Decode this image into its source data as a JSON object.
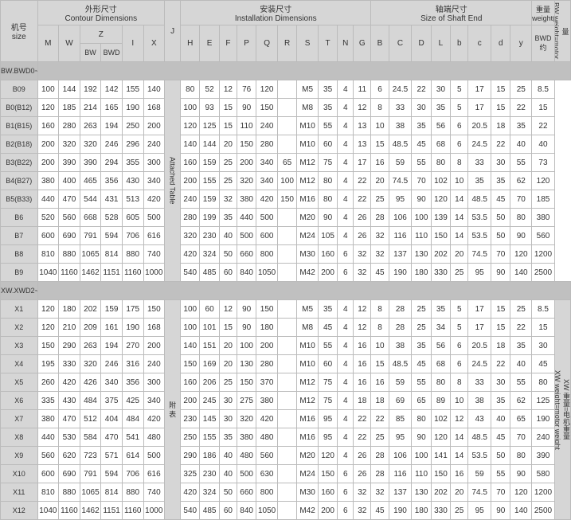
{
  "headers": {
    "size": "机号\nsize",
    "contour": "外形尺寸\nContour Dimensions",
    "install": "安装尺寸\nInstallation Dimensions",
    "shaft": "轴端尺寸\nSize of Shaft End",
    "weight": "重量\nweight(kg)",
    "M": "M",
    "W": "W",
    "Z": "Z",
    "BW": "BW",
    "BWD": "BWD",
    "I": "I",
    "X": "X",
    "J": "J",
    "H": "H",
    "E": "E",
    "F": "F",
    "P": "P",
    "Q": "Q",
    "R": "R",
    "S": "S",
    "T": "T",
    "N": "N",
    "G": "G",
    "B": "B",
    "C": "C",
    "D": "D",
    "L": "L",
    "b": "b",
    "c": "c",
    "d": "d",
    "y": "y",
    "BWDc": "BWD\n约",
    "attached": "Attached Table",
    "fu": "附\n表",
    "sec1": "BW.BWD0~9",
    "sec2": "XW.XWD2~12",
    "side1": "BW 重量=电机重量\nBW weight=motor weight",
    "side2": "XW 重量=电机重量\nXW weight=motor weight"
  },
  "rows1": [
    {
      "n": "B09",
      "c": [
        "100",
        "144",
        "192",
        "142",
        "155",
        "140"
      ],
      "i": [
        "80",
        "52",
        "12",
        "76",
        "120",
        "",
        "M5",
        "35",
        "4",
        "11",
        "6",
        "24.5",
        "22",
        "30",
        "5",
        "17",
        "15",
        "25",
        "8.5"
      ]
    },
    {
      "n": "B0(B12)",
      "c": [
        "120",
        "185",
        "214",
        "165",
        "190",
        "168"
      ],
      "i": [
        "100",
        "93",
        "15",
        "90",
        "150",
        "",
        "M8",
        "35",
        "4",
        "12",
        "8",
        "33",
        "30",
        "35",
        "5",
        "17",
        "15",
        "22",
        "15"
      ]
    },
    {
      "n": "B1(B15)",
      "c": [
        "160",
        "280",
        "263",
        "194",
        "250",
        "200"
      ],
      "i": [
        "120",
        "125",
        "15",
        "110",
        "240",
        "",
        "M10",
        "55",
        "4",
        "13",
        "10",
        "38",
        "35",
        "56",
        "6",
        "20.5",
        "18",
        "35",
        "22"
      ]
    },
    {
      "n": "B2(B18)",
      "c": [
        "200",
        "320",
        "320",
        "246",
        "296",
        "240"
      ],
      "i": [
        "140",
        "144",
        "20",
        "150",
        "280",
        "",
        "M10",
        "60",
        "4",
        "13",
        "15",
        "48.5",
        "45",
        "68",
        "6",
        "24.5",
        "22",
        "40",
        "40"
      ]
    },
    {
      "n": "B3(B22)",
      "c": [
        "200",
        "390",
        "390",
        "294",
        "355",
        "300"
      ],
      "i": [
        "160",
        "159",
        "25",
        "200",
        "340",
        "65",
        "M12",
        "75",
        "4",
        "17",
        "16",
        "59",
        "55",
        "80",
        "8",
        "33",
        "30",
        "55",
        "73"
      ]
    },
    {
      "n": "B4(B27)",
      "c": [
        "380",
        "400",
        "465",
        "356",
        "430",
        "340"
      ],
      "i": [
        "200",
        "155",
        "25",
        "320",
        "340",
        "100",
        "M12",
        "80",
        "4",
        "22",
        "20",
        "74.5",
        "70",
        "102",
        "10",
        "35",
        "35",
        "62",
        "120"
      ]
    },
    {
      "n": "B5(B33)",
      "c": [
        "440",
        "470",
        "544",
        "431",
        "513",
        "420"
      ],
      "i": [
        "240",
        "159",
        "32",
        "380",
        "420",
        "150",
        "M16",
        "80",
        "4",
        "22",
        "25",
        "95",
        "90",
        "120",
        "14",
        "48.5",
        "45",
        "70",
        "185"
      ]
    },
    {
      "n": "B6",
      "c": [
        "520",
        "560",
        "668",
        "528",
        "605",
        "500"
      ],
      "i": [
        "280",
        "199",
        "35",
        "440",
        "500",
        "",
        "M20",
        "90",
        "4",
        "26",
        "28",
        "106",
        "100",
        "139",
        "14",
        "53.5",
        "50",
        "80",
        "380"
      ]
    },
    {
      "n": "B7",
      "c": [
        "600",
        "690",
        "791",
        "594",
        "706",
        "616"
      ],
      "i": [
        "320",
        "230",
        "40",
        "500",
        "600",
        "",
        "M24",
        "105",
        "4",
        "26",
        "32",
        "116",
        "110",
        "150",
        "14",
        "53.5",
        "50",
        "90",
        "560"
      ]
    },
    {
      "n": "B8",
      "c": [
        "810",
        "880",
        "1065",
        "814",
        "880",
        "740"
      ],
      "i": [
        "420",
        "324",
        "50",
        "660",
        "800",
        "",
        "M30",
        "160",
        "6",
        "32",
        "32",
        "137",
        "130",
        "202",
        "20",
        "74.5",
        "70",
        "120",
        "1200"
      ]
    },
    {
      "n": "B9",
      "c": [
        "1040",
        "1160",
        "1462",
        "1151",
        "1160",
        "1000"
      ],
      "i": [
        "540",
        "485",
        "60",
        "840",
        "1050",
        "",
        "M42",
        "200",
        "6",
        "32",
        "45",
        "190",
        "180",
        "330",
        "25",
        "95",
        "90",
        "140",
        "2500"
      ]
    }
  ],
  "rows2": [
    {
      "n": "X1",
      "c": [
        "120",
        "180",
        "202",
        "159",
        "175",
        "150"
      ],
      "i": [
        "100",
        "60",
        "12",
        "90",
        "150",
        "",
        "M5",
        "35",
        "4",
        "12",
        "8",
        "28",
        "25",
        "35",
        "5",
        "17",
        "15",
        "25",
        "8.5"
      ]
    },
    {
      "n": "X2",
      "c": [
        "120",
        "210",
        "209",
        "161",
        "190",
        "168"
      ],
      "i": [
        "100",
        "101",
        "15",
        "90",
        "180",
        "",
        "M8",
        "45",
        "4",
        "12",
        "8",
        "28",
        "25",
        "34",
        "5",
        "17",
        "15",
        "22",
        "15"
      ]
    },
    {
      "n": "X3",
      "c": [
        "150",
        "290",
        "263",
        "194",
        "270",
        "200"
      ],
      "i": [
        "140",
        "151",
        "20",
        "100",
        "200",
        "",
        "M10",
        "55",
        "4",
        "16",
        "10",
        "38",
        "35",
        "56",
        "6",
        "20.5",
        "18",
        "35",
        "30"
      ]
    },
    {
      "n": "X4",
      "c": [
        "195",
        "330",
        "320",
        "246",
        "316",
        "240"
      ],
      "i": [
        "150",
        "169",
        "20",
        "130",
        "280",
        "",
        "M10",
        "60",
        "4",
        "16",
        "15",
        "48.5",
        "45",
        "68",
        "6",
        "24.5",
        "22",
        "40",
        "45"
      ]
    },
    {
      "n": "X5",
      "c": [
        "260",
        "420",
        "426",
        "340",
        "356",
        "300"
      ],
      "i": [
        "160",
        "206",
        "25",
        "150",
        "370",
        "",
        "M12",
        "75",
        "4",
        "16",
        "16",
        "59",
        "55",
        "80",
        "8",
        "33",
        "30",
        "55",
        "80"
      ]
    },
    {
      "n": "X6",
      "c": [
        "335",
        "430",
        "484",
        "375",
        "425",
        "340"
      ],
      "i": [
        "200",
        "245",
        "30",
        "275",
        "380",
        "",
        "M12",
        "75",
        "4",
        "18",
        "18",
        "69",
        "65",
        "89",
        "10",
        "38",
        "35",
        "62",
        "125"
      ]
    },
    {
      "n": "X7",
      "c": [
        "380",
        "470",
        "512",
        "404",
        "484",
        "420"
      ],
      "i": [
        "230",
        "145",
        "30",
        "320",
        "420",
        "",
        "M16",
        "95",
        "4",
        "22",
        "22",
        "85",
        "80",
        "102",
        "12",
        "43",
        "40",
        "65",
        "190"
      ]
    },
    {
      "n": "X8",
      "c": [
        "440",
        "530",
        "584",
        "470",
        "541",
        "480"
      ],
      "i": [
        "250",
        "155",
        "35",
        "380",
        "480",
        "",
        "M16",
        "95",
        "4",
        "22",
        "25",
        "95",
        "90",
        "120",
        "14",
        "48.5",
        "45",
        "70",
        "240"
      ]
    },
    {
      "n": "X9",
      "c": [
        "560",
        "620",
        "723",
        "571",
        "614",
        "500"
      ],
      "i": [
        "290",
        "186",
        "40",
        "480",
        "560",
        "",
        "M20",
        "120",
        "4",
        "26",
        "28",
        "106",
        "100",
        "141",
        "14",
        "53.5",
        "50",
        "80",
        "390"
      ]
    },
    {
      "n": "X10",
      "c": [
        "600",
        "690",
        "791",
        "594",
        "706",
        "616"
      ],
      "i": [
        "325",
        "230",
        "40",
        "500",
        "630",
        "",
        "M24",
        "150",
        "6",
        "26",
        "28",
        "116",
        "110",
        "150",
        "16",
        "59",
        "55",
        "90",
        "580"
      ]
    },
    {
      "n": "X11",
      "c": [
        "810",
        "880",
        "1065",
        "814",
        "880",
        "740"
      ],
      "i": [
        "420",
        "324",
        "50",
        "660",
        "800",
        "",
        "M30",
        "160",
        "6",
        "32",
        "32",
        "137",
        "130",
        "202",
        "20",
        "74.5",
        "70",
        "120",
        "1200"
      ]
    },
    {
      "n": "X12",
      "c": [
        "1040",
        "1160",
        "1462",
        "1151",
        "1160",
        "1000"
      ],
      "i": [
        "540",
        "485",
        "60",
        "840",
        "1050",
        "",
        "M42",
        "200",
        "6",
        "32",
        "45",
        "190",
        "180",
        "330",
        "25",
        "95",
        "90",
        "140",
        "2500"
      ]
    }
  ]
}
